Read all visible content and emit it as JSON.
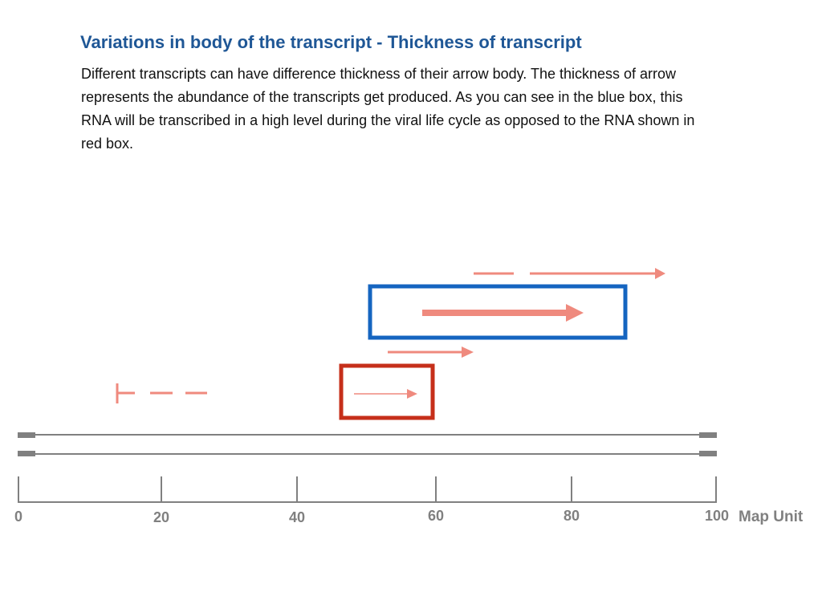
{
  "slide": {
    "title": "Variations in body of the transcript - Thickness of transcript",
    "body_lines": [
      "Different transcripts can have difference thickness of their arrow body. The thickness of arrow",
      "represents the abundance of the transcripts get produced. As you can see in the blue box, this",
      "RNA will be transcribed in a high level during the viral life cycle as opposed to the RNA shown in",
      "red box."
    ]
  },
  "axis": {
    "unit_label": "Map Unit",
    "ticks": [
      "0",
      "20",
      "40",
      "60",
      "80",
      "100"
    ]
  },
  "colors": {
    "title": "#1f5796",
    "transcript": "#ef8a7e",
    "blue_box": "#1565c0",
    "red_box": "#c62f1a",
    "genome": "#808080"
  }
}
